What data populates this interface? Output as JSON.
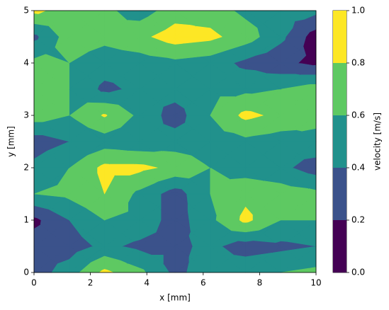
{
  "chart_data": {
    "type": "contourf",
    "xlabel": "x [mm]",
    "ylabel": "y [mm]",
    "colorbar_label": "velocity [m/s]",
    "x": [
      0,
      1.25,
      2.5,
      3.75,
      5,
      6.25,
      7.5,
      8.75,
      10
    ],
    "y": [
      0,
      0.5,
      1,
      1.5,
      2,
      2.5,
      3,
      3.5,
      4,
      4.5,
      5
    ],
    "z": [
      [
        0.3,
        0.5,
        0.85,
        0.65,
        0.35,
        0.5,
        0.55,
        0.6,
        0.65
      ],
      [
        0.3,
        0.3,
        0.45,
        0.35,
        0.35,
        0.45,
        0.3,
        0.35,
        0.4
      ],
      [
        0.15,
        0.4,
        0.6,
        0.55,
        0.3,
        0.55,
        0.85,
        0.6,
        0.6
      ],
      [
        0.6,
        0.65,
        0.8,
        0.55,
        0.3,
        0.6,
        0.75,
        0.7,
        0.65
      ],
      [
        0.45,
        0.6,
        0.85,
        0.85,
        0.75,
        0.6,
        0.5,
        0.45,
        0.3
      ],
      [
        0.3,
        0.4,
        0.5,
        0.45,
        0.5,
        0.5,
        0.55,
        0.5,
        0.55
      ],
      [
        0.7,
        0.6,
        0.82,
        0.55,
        0.3,
        0.6,
        0.85,
        0.75,
        0.65
      ],
      [
        0.7,
        0.6,
        0.35,
        0.45,
        0.5,
        0.55,
        0.55,
        0.6,
        0.7
      ],
      [
        0.65,
        0.6,
        0.5,
        0.5,
        0.55,
        0.5,
        0.35,
        0.25,
        0.15
      ],
      [
        0.35,
        0.7,
        0.65,
        0.75,
        0.9,
        0.85,
        0.7,
        0.45,
        0.1
      ],
      [
        0.85,
        0.7,
        0.65,
        0.5,
        0.7,
        0.7,
        0.55,
        0.5,
        0.45
      ]
    ],
    "levels": [
      0,
      0.2,
      0.4,
      0.6,
      0.8,
      1
    ],
    "colors": [
      "#440154",
      "#3b528b",
      "#21918c",
      "#5ec962",
      "#fde725"
    ],
    "xlim": [
      0,
      10
    ],
    "ylim": [
      0,
      5
    ],
    "xticks": [
      0,
      2,
      4,
      6,
      8,
      10
    ],
    "yticks": [
      0,
      1,
      2,
      3,
      4,
      5
    ],
    "cbar_ticks": [
      {
        "value": 0,
        "label": "0.0"
      },
      {
        "value": 0.2,
        "label": "0.2"
      },
      {
        "value": 0.4,
        "label": "0.4"
      },
      {
        "value": 0.6,
        "label": "0.6"
      },
      {
        "value": 0.8,
        "label": "0.8"
      },
      {
        "value": 1,
        "label": "1.0"
      }
    ]
  }
}
